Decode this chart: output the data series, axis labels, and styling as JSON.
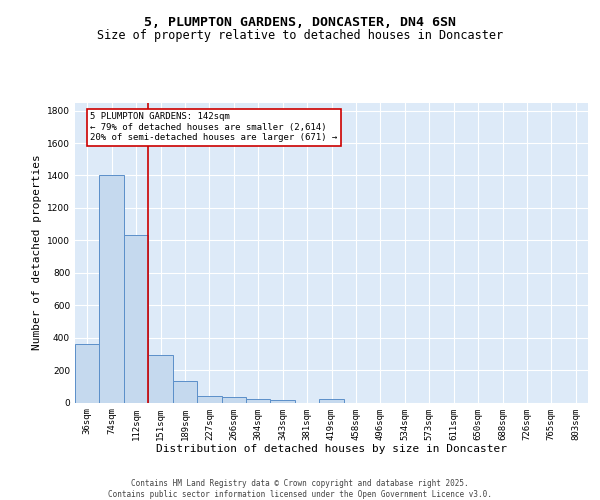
{
  "title": "5, PLUMPTON GARDENS, DONCASTER, DN4 6SN",
  "subtitle": "Size of property relative to detached houses in Doncaster",
  "xlabel": "Distribution of detached houses by size in Doncaster",
  "ylabel": "Number of detached properties",
  "categories": [
    "36sqm",
    "74sqm",
    "112sqm",
    "151sqm",
    "189sqm",
    "227sqm",
    "266sqm",
    "304sqm",
    "343sqm",
    "381sqm",
    "419sqm",
    "458sqm",
    "496sqm",
    "534sqm",
    "573sqm",
    "611sqm",
    "650sqm",
    "688sqm",
    "726sqm",
    "765sqm",
    "803sqm"
  ],
  "values": [
    360,
    1400,
    1035,
    290,
    130,
    42,
    35,
    22,
    18,
    0,
    20,
    0,
    0,
    0,
    0,
    0,
    0,
    0,
    0,
    0,
    0
  ],
  "bar_color": "#c5d9ee",
  "bar_edge_color": "#5b8fc9",
  "background_color": "#ddeaf8",
  "grid_color": "#ffffff",
  "vline_color": "#cc0000",
  "vline_x": 2.5,
  "ylim": [
    0,
    1850
  ],
  "yticks": [
    0,
    200,
    400,
    600,
    800,
    1000,
    1200,
    1400,
    1600,
    1800
  ],
  "annotation_text": "5 PLUMPTON GARDENS: 142sqm\n← 79% of detached houses are smaller (2,614)\n20% of semi-detached houses are larger (671) →",
  "annotation_box_edgecolor": "#cc0000",
  "footer_text": "Contains HM Land Registry data © Crown copyright and database right 2025.\nContains public sector information licensed under the Open Government Licence v3.0.",
  "title_fontsize": 9.5,
  "subtitle_fontsize": 8.5,
  "axis_label_fontsize": 8,
  "tick_fontsize": 6.5,
  "footer_fontsize": 5.5,
  "annotation_fontsize": 6.5
}
